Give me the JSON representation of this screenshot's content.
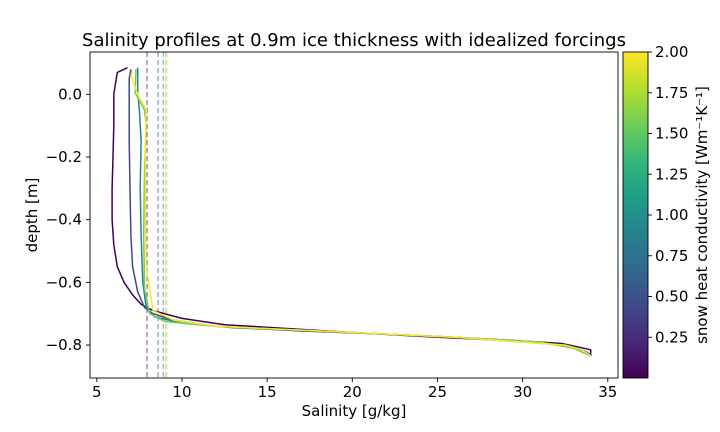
{
  "chart_data": {
    "type": "line",
    "title": "Salinity profiles at 0.9m ice thickness with idealized forcings",
    "xlabel": "Salinity [g/kg]",
    "ylabel": "depth [m]",
    "xlim": [
      4.6,
      35.6
    ],
    "ylim": [
      -0.905,
      0.135
    ],
    "xticks": [
      5,
      10,
      15,
      20,
      25,
      30,
      35
    ],
    "yticks": [
      0.0,
      -0.2,
      -0.4,
      -0.6,
      -0.8
    ],
    "ytick_labels": [
      "0.0",
      "−0.2",
      "−0.4",
      "−0.6",
      "−0.8"
    ],
    "grid": false,
    "colorbar": {
      "label": "snow heat conductivity [Wm⁻¹K⁻¹]",
      "range": [
        0.0,
        2.0
      ],
      "ticks": [
        0.25,
        0.5,
        0.75,
        1.0,
        1.25,
        1.5,
        1.75,
        2.0
      ],
      "tick_labels": [
        "0.25",
        "0.50",
        "0.75",
        "1.00",
        "1.25",
        "1.50",
        "1.75",
        "2.00"
      ],
      "colormap": "viridis",
      "colors": [
        "#440154",
        "#482878",
        "#3e4a89",
        "#31688e",
        "#26828e",
        "#1f9e89",
        "#35b779",
        "#6ece58",
        "#b5de2b",
        "#fde725"
      ]
    },
    "series": [
      {
        "k": 0.0,
        "color": "#440154",
        "x": [
          6.8,
          6.2,
          6.0,
          6.0,
          5.95,
          5.9,
          5.9,
          6.0,
          6.2,
          6.6,
          7.1,
          7.6,
          8.3,
          10.0,
          12.5,
          20.0,
          25.0,
          29.0,
          31.0,
          32.3,
          33.2,
          34.0,
          34.0
        ],
        "y": [
          0.085,
          0.07,
          0.0,
          -0.1,
          -0.2,
          -0.3,
          -0.4,
          -0.48,
          -0.55,
          -0.6,
          -0.64,
          -0.67,
          -0.69,
          -0.715,
          -0.735,
          -0.76,
          -0.775,
          -0.785,
          -0.79,
          -0.795,
          -0.805,
          -0.815,
          -0.835
        ]
      },
      {
        "k": 0.5,
        "color": "#3e4a89",
        "x": [
          7.0,
          6.9,
          6.9,
          6.9,
          6.95,
          7.0,
          7.1,
          7.4,
          7.8,
          8.3,
          9.5,
          12.0,
          17.0,
          22.0,
          26.0,
          29.5,
          31.5,
          32.5,
          33.5,
          34.0
        ],
        "y": [
          0.08,
          0.05,
          -0.05,
          -0.15,
          -0.3,
          -0.45,
          -0.55,
          -0.63,
          -0.68,
          -0.7,
          -0.72,
          -0.74,
          -0.755,
          -0.765,
          -0.775,
          -0.785,
          -0.795,
          -0.8,
          -0.815,
          -0.83
        ]
      },
      {
        "k": 1.0,
        "color": "#26828e",
        "x": [
          7.4,
          7.4,
          7.5,
          7.6,
          7.55,
          7.6,
          7.7,
          7.9,
          8.4,
          10.0,
          13.0,
          20.0,
          26.0,
          30.0,
          32.5,
          33.5,
          34.0
        ],
        "y": [
          0.085,
          0.0,
          -0.05,
          -0.15,
          -0.3,
          -0.45,
          -0.6,
          -0.68,
          -0.71,
          -0.73,
          -0.745,
          -0.76,
          -0.775,
          -0.79,
          -0.8,
          -0.815,
          -0.83
        ]
      },
      {
        "k": 1.5,
        "color": "#6ece58",
        "x": [
          7.3,
          7.25,
          7.8,
          7.9,
          7.8,
          7.75,
          7.8,
          8.1,
          9.0,
          12.0,
          20.0,
          26.0,
          31.0,
          33.0,
          34.0
        ],
        "y": [
          0.08,
          0.005,
          -0.05,
          -0.1,
          -0.25,
          -0.45,
          -0.62,
          -0.7,
          -0.725,
          -0.74,
          -0.76,
          -0.775,
          -0.79,
          -0.81,
          -0.835
        ]
      },
      {
        "k": 2.0,
        "color": "#fde725",
        "x": [
          7.1,
          7.0,
          7.4,
          7.7,
          7.9,
          7.85,
          7.85,
          7.9,
          8.3,
          9.5,
          12.0,
          20.0,
          26.0,
          30.0,
          32.5,
          33.5,
          34.0
        ],
        "y": [
          0.075,
          0.06,
          0.0,
          -0.03,
          -0.05,
          -0.15,
          -0.35,
          -0.55,
          -0.69,
          -0.72,
          -0.74,
          -0.76,
          -0.775,
          -0.79,
          -0.8,
          -0.815,
          -0.835
        ]
      }
    ],
    "vlines": [
      {
        "x": 7.95,
        "color": "#440154"
      },
      {
        "x": 8.6,
        "color": "#3e4a89"
      },
      {
        "x": 8.9,
        "color": "#26828e"
      },
      {
        "x": 9.05,
        "color": "#6ece58"
      },
      {
        "x": 9.12,
        "color": "#fde725"
      }
    ]
  }
}
